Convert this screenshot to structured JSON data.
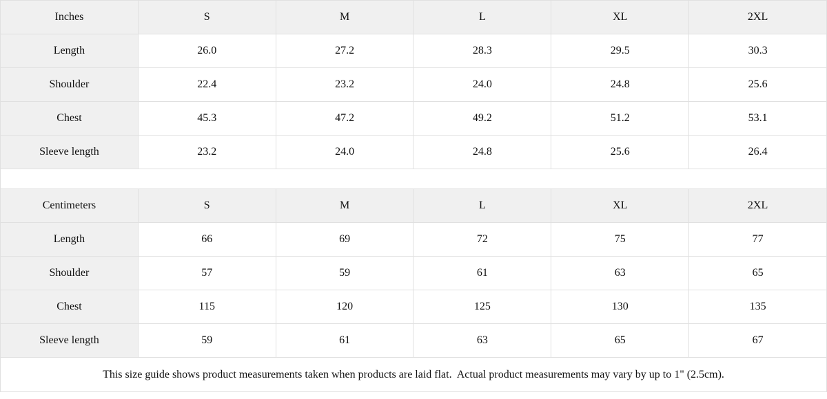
{
  "colors": {
    "header_background": "#f0f0f0",
    "cell_background": "#ffffff",
    "border": "#e0e0e0",
    "text": "#111111"
  },
  "note": "This size guide shows product measurements taken when products are laid flat.  Actual product measurements may vary by up to 1\" (2.5cm).",
  "chart_data": [
    {
      "type": "table",
      "title": "Size guide in inches",
      "columns": [
        "Inches",
        "S",
        "M",
        "L",
        "XL",
        "2XL"
      ],
      "rows": [
        [
          "Length",
          "26.0",
          "27.2",
          "28.3",
          "29.5",
          "30.3"
        ],
        [
          "Shoulder",
          "22.4",
          "23.2",
          "24.0",
          "24.8",
          "25.6"
        ],
        [
          "Chest",
          "45.3",
          "47.2",
          "49.2",
          "51.2",
          "53.1"
        ],
        [
          "Sleeve length",
          "23.2",
          "24.0",
          "24.8",
          "25.6",
          "26.4"
        ]
      ]
    },
    {
      "type": "table",
      "title": "Size guide in centimeters",
      "columns": [
        "Centimeters",
        "S",
        "M",
        "L",
        "XL",
        "2XL"
      ],
      "rows": [
        [
          "Length",
          "66",
          "69",
          "72",
          "75",
          "77"
        ],
        [
          "Shoulder",
          "57",
          "59",
          "61",
          "63",
          "65"
        ],
        [
          "Chest",
          "115",
          "120",
          "125",
          "130",
          "135"
        ],
        [
          "Sleeve length",
          "59",
          "61",
          "63",
          "65",
          "67"
        ]
      ]
    }
  ]
}
